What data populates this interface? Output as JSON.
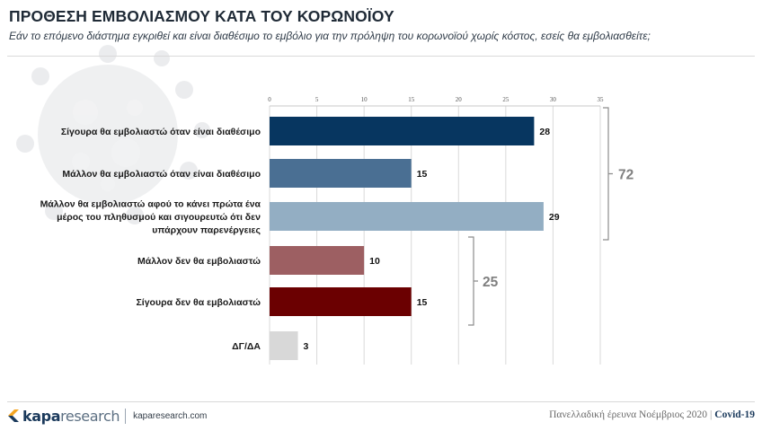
{
  "title": "ΠΡΟΘΕΣΗ ΕΜΒΟΛΙΑΣΜΟΥ ΚΑΤΑ ΤΟΥ ΚΟΡΩΝΟΪΟΥ",
  "subtitle": "Εάν το επόμενο διάστημα εγκριθεί και είναι διαθέσιμο το εμβόλιο για την πρόληψη του κορωνοϊού χωρίς κόστος, εσείς θα εμβολιασθείτε;",
  "chart_data": {
    "type": "bar",
    "orientation": "horizontal",
    "title": "",
    "xlabel": "",
    "ylabel": "",
    "xlim": [
      0,
      35
    ],
    "x_ticks": [
      0,
      5,
      10,
      15,
      20,
      25,
      30,
      35
    ],
    "gridlines": true,
    "categories": [
      [
        "Σίγουρα θα εμβολιαστώ όταν είναι διαθέσιμο"
      ],
      [
        "Μάλλον θα εμβολιαστώ όταν είναι διαθέσιμο"
      ],
      [
        "Μάλλον θα εμβολιαστώ αφού το κάνει πρώτα ένα",
        "μέρος του πληθυσμού και σιγουρευτώ ότι δεν",
        "υπάρχουν παρενέργειες"
      ],
      [
        "Μάλλον δεν θα εμβολιαστώ"
      ],
      [
        "Σίγουρα δεν θα εμβολιαστώ"
      ],
      [
        "ΔΓ/ΔΑ"
      ]
    ],
    "values": [
      28,
      15,
      29,
      10,
      15,
      3
    ],
    "colors": [
      "#073660",
      "#4a6f93",
      "#93aec3",
      "#9d5f62",
      "#6b0001",
      "#d8d8d8"
    ],
    "groups": [
      {
        "label": "72",
        "from": 0,
        "to": 2
      },
      {
        "label": "25",
        "from": 3,
        "to": 4
      }
    ]
  },
  "footer": {
    "brand_part1": "kapa",
    "brand_part2": "research",
    "url": "kaparesearch.com",
    "survey": "Πανελλαδική έρευνα Νοέμβριος 2020",
    "separator": "|",
    "tag": "Covid-19"
  }
}
